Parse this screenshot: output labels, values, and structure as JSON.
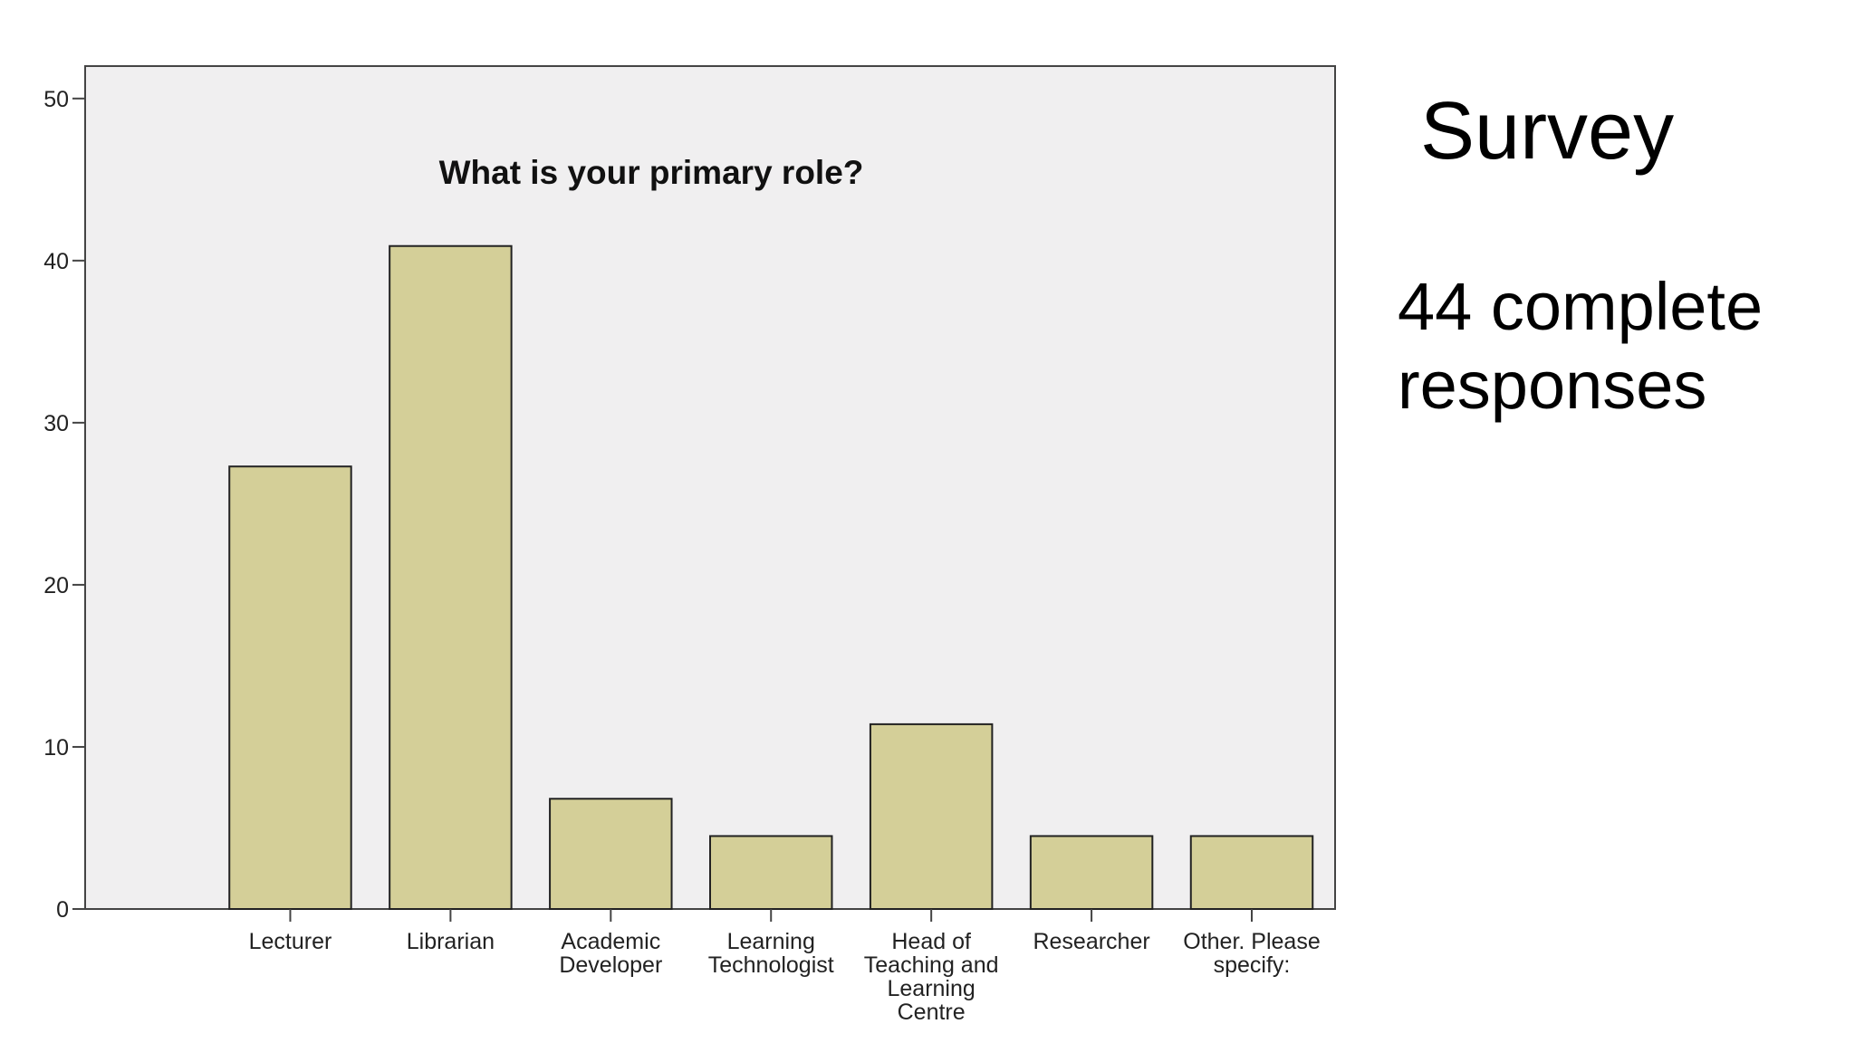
{
  "slide": {
    "title": "Survey",
    "summary_line1": "44 complete",
    "summary_line2": "responses"
  },
  "colors": {
    "plot_background": "#f0eff0",
    "bar_fill": "#d4cf98",
    "bar_stroke": "#222222",
    "axis": "#444444"
  },
  "chart_data": {
    "type": "bar",
    "title": "What is your primary role?",
    "xlabel": "",
    "ylabel": "",
    "ylim": [
      0,
      52
    ],
    "yticks": [
      0,
      10,
      20,
      30,
      40,
      50
    ],
    "grid": false,
    "categories": [
      [
        "Lecturer"
      ],
      [
        "Librarian"
      ],
      [
        "Academic",
        "Developer"
      ],
      [
        "Learning",
        "Technologist"
      ],
      [
        "Head of",
        "Teaching and",
        "Learning",
        "Centre"
      ],
      [
        "Researcher"
      ],
      [
        "Other. Please",
        "specify:"
      ]
    ],
    "values": [
      27.3,
      40.9,
      6.8,
      4.5,
      11.4,
      4.5,
      4.5
    ]
  }
}
